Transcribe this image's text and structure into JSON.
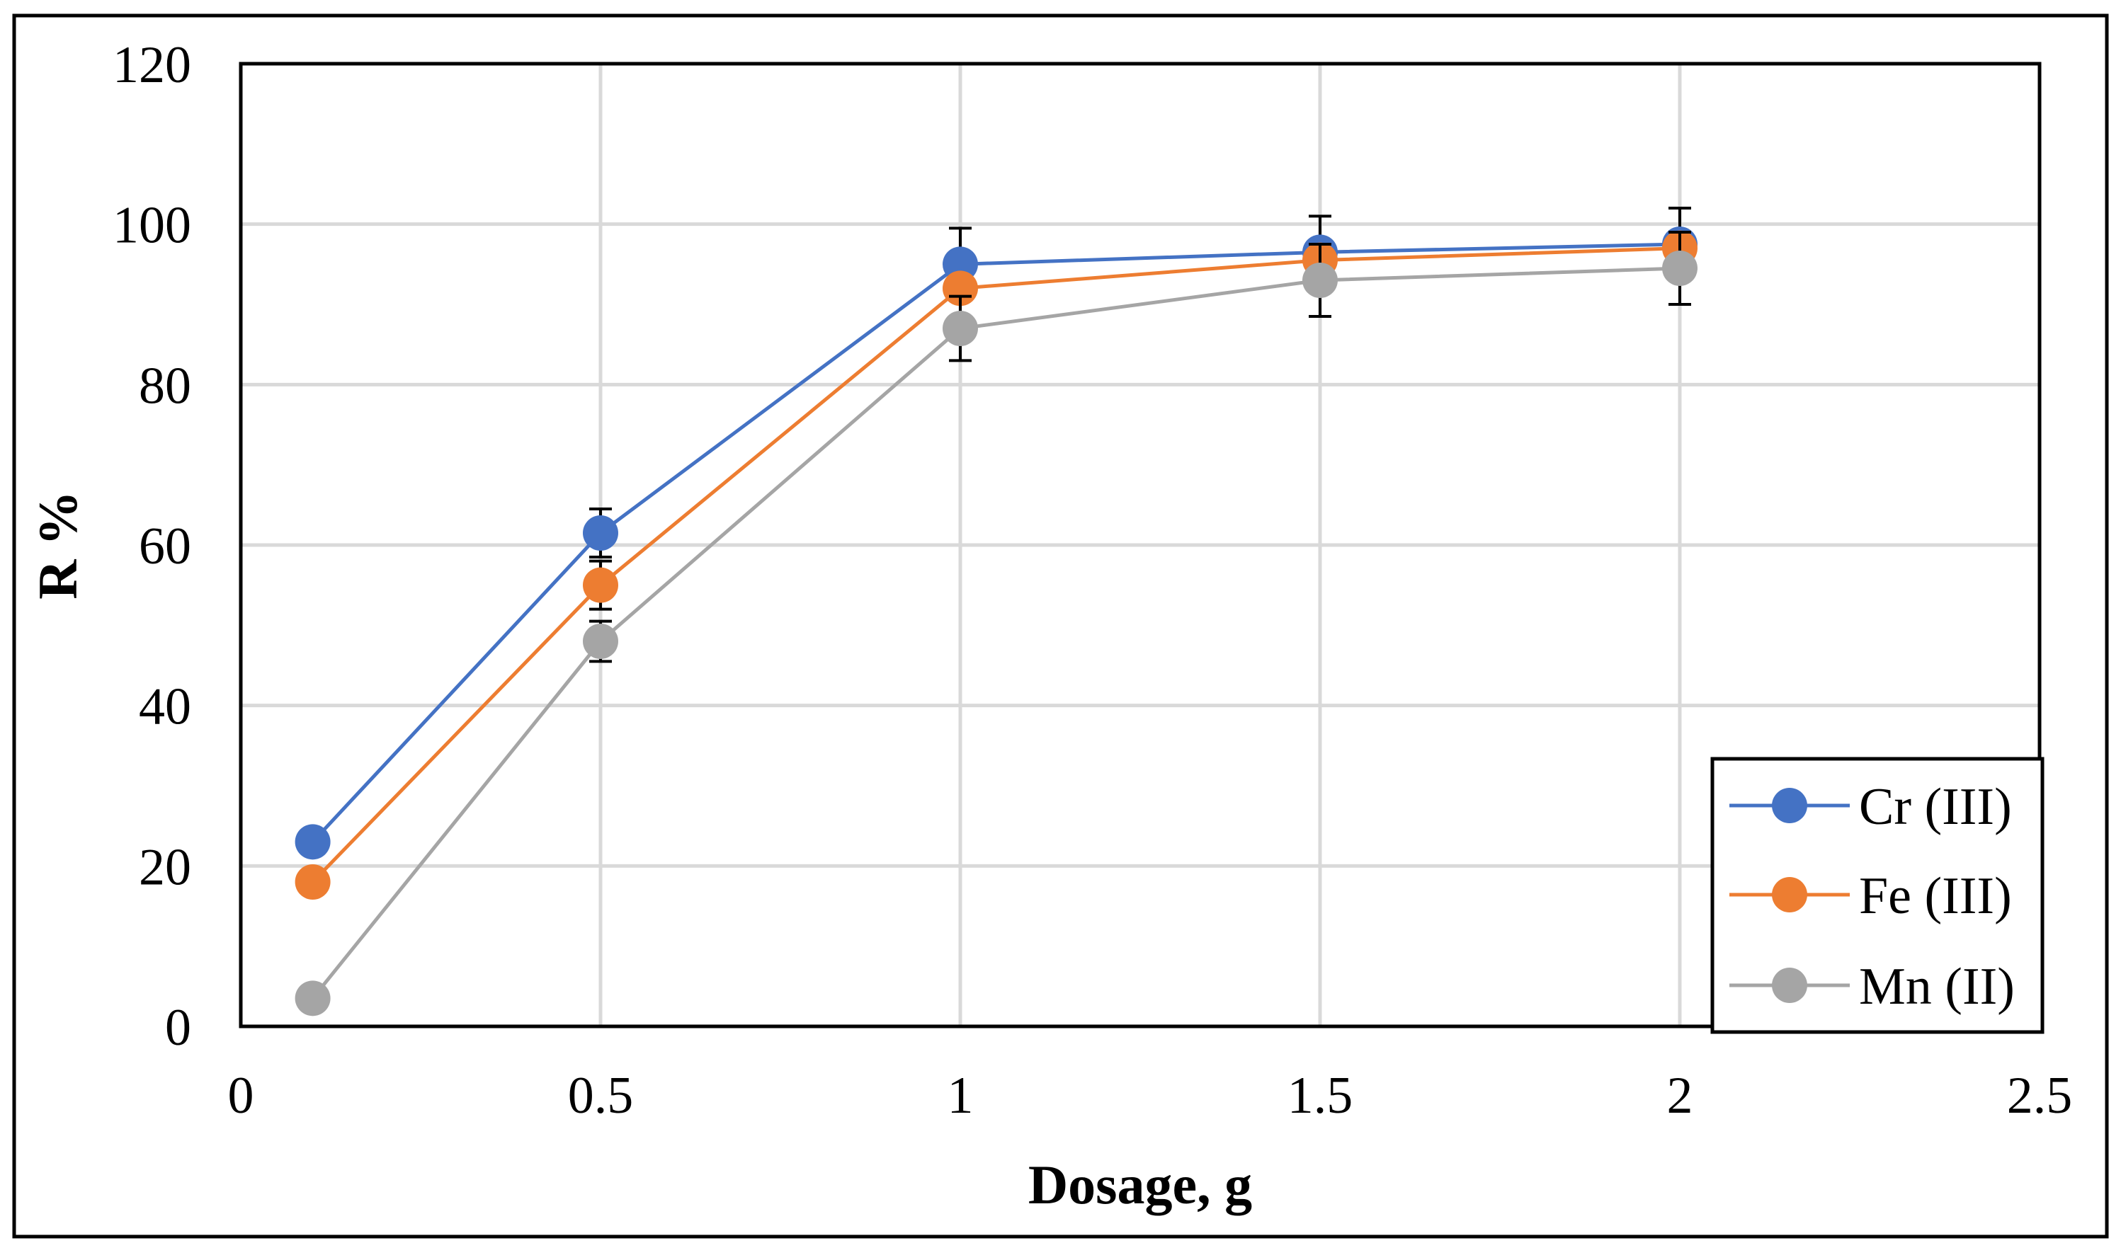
{
  "chart_data": {
    "type": "line",
    "title": "",
    "xlabel": "Dosage, g",
    "ylabel": "R %",
    "xlim": [
      0,
      2.5
    ],
    "ylim": [
      0,
      120
    ],
    "x_ticks": [
      0,
      0.5,
      1,
      1.5,
      2,
      2.5
    ],
    "x_tick_labels": [
      "0",
      "0.5",
      "1",
      "1.5",
      "2",
      "2.5"
    ],
    "y_ticks": [
      0,
      20,
      40,
      60,
      80,
      100,
      120
    ],
    "y_tick_labels": [
      "0",
      "20",
      "40",
      "60",
      "80",
      "100",
      "120"
    ],
    "grid": true,
    "legend_position": "bottom-right",
    "x": [
      0.1,
      0.5,
      1,
      1.5,
      2
    ],
    "series": [
      {
        "name": "Cr (III)",
        "color": "#4472C4",
        "values": [
          23,
          61.5,
          95,
          96.5,
          97.5
        ],
        "error": [
          0,
          3,
          4.5,
          4.5,
          4.5
        ]
      },
      {
        "name": "Fe (III)",
        "color": "#ED7D31",
        "values": [
          18,
          55,
          92,
          95.5,
          97
        ],
        "error": [
          0,
          3,
          0,
          0,
          0
        ]
      },
      {
        "name": "Mn (II)",
        "color": "#A5A5A5",
        "values": [
          3.5,
          48,
          87,
          93,
          94.5
        ],
        "error": [
          0,
          2.5,
          4,
          4.5,
          4.5
        ]
      }
    ]
  }
}
